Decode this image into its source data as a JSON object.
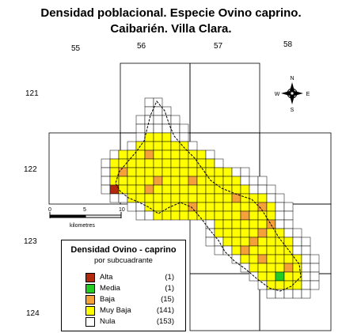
{
  "title_line1": "Densidad poblacional. Especie Ovino caprino.",
  "title_line2": "Caibarién. Villa Clara.",
  "columns": [
    "55",
    "56",
    "57",
    "58"
  ],
  "rows": [
    "121",
    "122",
    "123",
    "124"
  ],
  "compass": {
    "n": "N",
    "s": "S",
    "e": "E",
    "w": "W"
  },
  "scale": {
    "zero": "0",
    "mid": "5",
    "max": "10",
    "unit": "kilometres"
  },
  "legend": {
    "title": "Densidad Ovino - caprino",
    "subtitle": "por subcuadrante",
    "items": [
      {
        "label": "Alta",
        "count": "(1)",
        "color": "#b22a0d"
      },
      {
        "label": "Media",
        "count": "(1)",
        "color": "#22cc22"
      },
      {
        "label": "Baja",
        "count": "(15)",
        "color": "#f4a13a"
      },
      {
        "label": "Muy Baja",
        "count": "(141)",
        "color": "#ffff00"
      },
      {
        "label": "Nula",
        "count": "(153)",
        "color": "#ffffff"
      }
    ]
  }
}
